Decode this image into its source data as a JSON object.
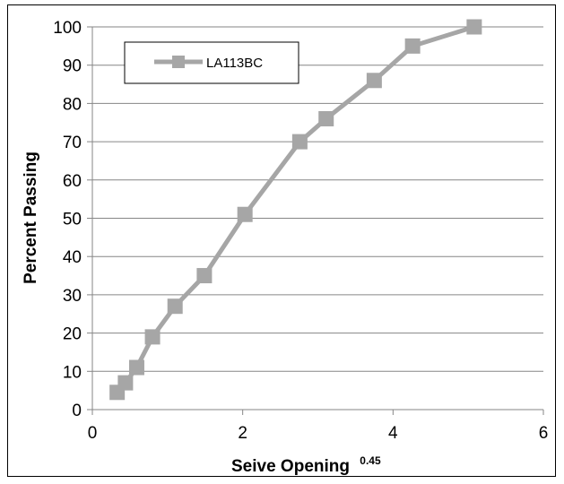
{
  "chart_data": {
    "type": "line",
    "xlabel": "Seive Opening",
    "xlabel_superscript": "0.45",
    "ylabel": "Percent Passing",
    "xlim": [
      0,
      6
    ],
    "ylim": [
      0,
      100
    ],
    "x_ticks": [
      0,
      2,
      4,
      6
    ],
    "y_ticks": [
      0,
      10,
      20,
      30,
      40,
      50,
      60,
      70,
      80,
      90,
      100
    ],
    "grid": "horizontal",
    "legend_position": "top-left",
    "series": [
      {
        "name": "LA113BC",
        "color": "#a6a6a6",
        "marker": "square",
        "x": [
          0.33,
          0.44,
          0.59,
          0.8,
          1.1,
          1.49,
          2.03,
          2.76,
          3.11,
          3.75,
          4.26,
          5.08
        ],
        "y": [
          4.5,
          7,
          11,
          19,
          27,
          35,
          51,
          70,
          76,
          86,
          95,
          100
        ]
      }
    ]
  }
}
